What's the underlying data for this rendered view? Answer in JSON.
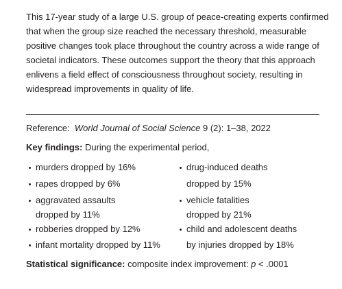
{
  "paragraph": {
    "lines": [
      "This 17-year study of a large U.S. group of peace-creating experts confirmed",
      "that when the group size reached the necessary threshold, measurable",
      "positive changes took place throughout the country across a wide range of",
      "societal indicators. These outcomes support the theory that this approach",
      "enlivens a field effect of consciousness throughout society, resulting in",
      "widespread improvements in quality of life."
    ]
  },
  "reference": {
    "label": "Reference:",
    "journal": "World Journal of Social Science",
    "details": "9 (2): 1–38, 2022"
  },
  "key_findings": {
    "label": "Key findings:",
    "intro": "During the experimental period,",
    "left": [
      {
        "lines": [
          "murders dropped by 16%"
        ]
      },
      {
        "lines": [
          "rapes dropped by 6%"
        ]
      },
      {
        "lines": [
          "aggravated assaults",
          "dropped by 11%"
        ]
      },
      {
        "lines": [
          "robberies dropped by 12%"
        ]
      },
      {
        "lines": [
          "infant mortality dropped by 11%"
        ]
      }
    ],
    "right": [
      {
        "lines": [
          "drug-induced deaths",
          "dropped by 15%"
        ]
      },
      {
        "lines": [
          "vehicle fatalities",
          "dropped by 21%"
        ]
      },
      {
        "lines": [
          "child and adolescent deaths",
          "by injuries dropped by 18%"
        ]
      }
    ]
  },
  "significance": {
    "label": "Statistical significance:",
    "text": "composite index improvement:",
    "symbol": "p",
    "value": "< .0001"
  }
}
